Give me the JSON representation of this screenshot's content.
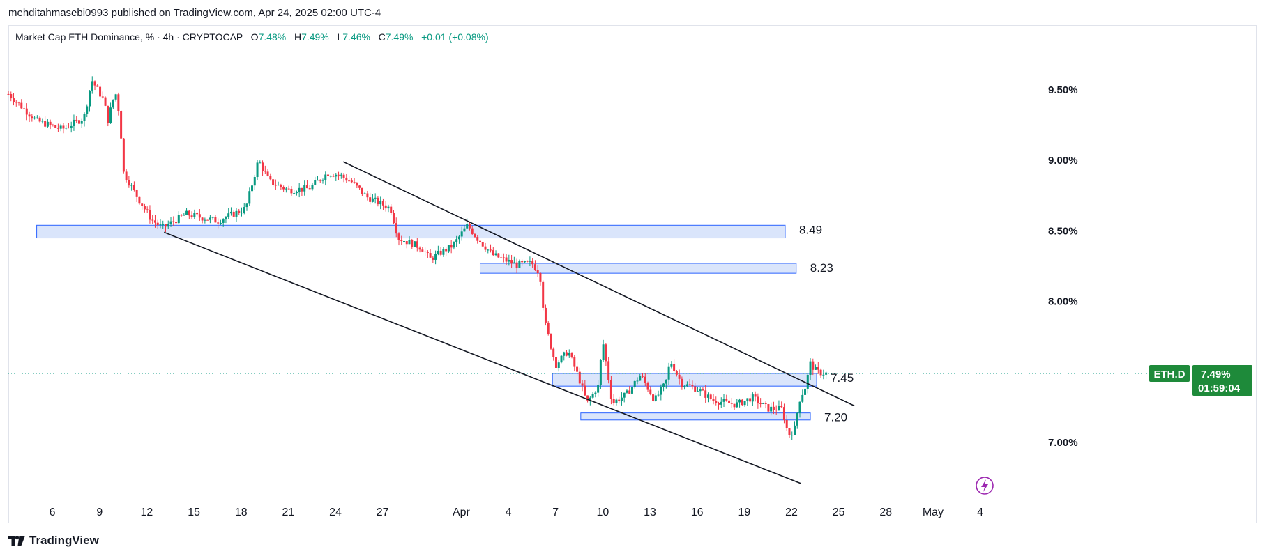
{
  "header": {
    "published": "mehditahmasebi0993 published on TradingView.com, Apr 24, 2025 02:00 UTC-4"
  },
  "legend": {
    "symbol": "Market Cap ETH Dominance, % · 4h · CRYPTOCAP",
    "o_label": "O",
    "o_value": "7.48%",
    "h_label": "H",
    "h_value": "7.49%",
    "l_label": "L",
    "l_value": "7.46%",
    "c_label": "C",
    "c_value": "7.49%",
    "change": "+0.01 (+0.08%)"
  },
  "price_tag": {
    "ticker": "ETH.D",
    "price": "7.49%",
    "countdown": "01:59:04"
  },
  "footer": {
    "brand": "TradingView"
  },
  "colors": {
    "up": "#089981",
    "down": "#f23645",
    "zone_fill": "#d6e2fb",
    "zone_stroke": "#2962ff",
    "line": "#131722"
  },
  "chart_data": {
    "type": "candlestick",
    "timeframe": "4h",
    "ylim": [
      6.68,
      9.84
    ],
    "y_ticks": [
      {
        "value": 9.5,
        "label": "9.50%"
      },
      {
        "value": 9.0,
        "label": "9.00%"
      },
      {
        "value": 8.5,
        "label": "8.50%"
      },
      {
        "value": 8.0,
        "label": "8.00%"
      },
      {
        "value": 7.0,
        "label": "7.00%"
      }
    ],
    "x_ticks": [
      {
        "day": 6,
        "label": "6"
      },
      {
        "day": 9,
        "label": "9"
      },
      {
        "day": 12,
        "label": "12"
      },
      {
        "day": 15,
        "label": "15"
      },
      {
        "day": 18,
        "label": "18"
      },
      {
        "day": 21,
        "label": "21"
      },
      {
        "day": 24,
        "label": "24"
      },
      {
        "day": 27,
        "label": "27"
      },
      {
        "day": 32,
        "label": "Apr"
      },
      {
        "day": 35,
        "label": "4"
      },
      {
        "day": 38,
        "label": "7"
      },
      {
        "day": 41,
        "label": "10"
      },
      {
        "day": 44,
        "label": "13"
      },
      {
        "day": 47,
        "label": "16"
      },
      {
        "day": 50,
        "label": "19"
      },
      {
        "day": 53,
        "label": "22"
      },
      {
        "day": 56,
        "label": "25"
      },
      {
        "day": 59,
        "label": "28"
      },
      {
        "day": 62,
        "label": "May"
      },
      {
        "day": 65,
        "label": "4"
      }
    ],
    "x_range_days": [
      3.2,
      68.3
    ],
    "key_prices": [
      {
        "day": 3.2,
        "value": 9.47
      },
      {
        "day": 5.0,
        "value": 9.28
      },
      {
        "day": 6.6,
        "value": 9.22
      },
      {
        "day": 8.0,
        "value": 9.3
      },
      {
        "day": 8.5,
        "value": 9.57
      },
      {
        "day": 9.3,
        "value": 9.42
      },
      {
        "day": 9.5,
        "value": 9.27
      },
      {
        "day": 10.0,
        "value": 9.49
      },
      {
        "day": 10.3,
        "value": 9.3
      },
      {
        "day": 10.5,
        "value": 8.92
      },
      {
        "day": 11.5,
        "value": 8.72
      },
      {
        "day": 12.3,
        "value": 8.58
      },
      {
        "day": 13.0,
        "value": 8.52
      },
      {
        "day": 14.5,
        "value": 8.62
      },
      {
        "day": 16.5,
        "value": 8.57
      },
      {
        "day": 18.3,
        "value": 8.66
      },
      {
        "day": 19.1,
        "value": 9.0
      },
      {
        "day": 19.8,
        "value": 8.85
      },
      {
        "day": 21.0,
        "value": 8.79
      },
      {
        "day": 22.3,
        "value": 8.8
      },
      {
        "day": 23.5,
        "value": 8.91
      },
      {
        "day": 24.2,
        "value": 8.9
      },
      {
        "day": 25.0,
        "value": 8.85
      },
      {
        "day": 26.0,
        "value": 8.74
      },
      {
        "day": 27.5,
        "value": 8.66
      },
      {
        "day": 28.0,
        "value": 8.45
      },
      {
        "day": 29.5,
        "value": 8.38
      },
      {
        "day": 30.0,
        "value": 8.3
      },
      {
        "day": 31.5,
        "value": 8.4
      },
      {
        "day": 32.4,
        "value": 8.54
      },
      {
        "day": 33.0,
        "value": 8.45
      },
      {
        "day": 34.0,
        "value": 8.33
      },
      {
        "day": 35.5,
        "value": 8.26
      },
      {
        "day": 36.5,
        "value": 8.27
      },
      {
        "day": 37.0,
        "value": 8.2
      },
      {
        "day": 37.3,
        "value": 7.86
      },
      {
        "day": 38.0,
        "value": 7.55
      },
      {
        "day": 38.8,
        "value": 7.65
      },
      {
        "day": 39.5,
        "value": 7.45
      },
      {
        "day": 40.0,
        "value": 7.28
      },
      {
        "day": 40.7,
        "value": 7.4
      },
      {
        "day": 41.0,
        "value": 7.72
      },
      {
        "day": 41.6,
        "value": 7.28
      },
      {
        "day": 42.5,
        "value": 7.34
      },
      {
        "day": 43.4,
        "value": 7.48
      },
      {
        "day": 44.3,
        "value": 7.3
      },
      {
        "day": 45.0,
        "value": 7.42
      },
      {
        "day": 45.3,
        "value": 7.58
      },
      {
        "day": 46.0,
        "value": 7.42
      },
      {
        "day": 47.0,
        "value": 7.38
      },
      {
        "day": 48.0,
        "value": 7.3
      },
      {
        "day": 49.5,
        "value": 7.27
      },
      {
        "day": 50.5,
        "value": 7.32
      },
      {
        "day": 51.5,
        "value": 7.24
      },
      {
        "day": 52.4,
        "value": 7.24
      },
      {
        "day": 52.8,
        "value": 7.05
      },
      {
        "day": 53.2,
        "value": 7.1
      },
      {
        "day": 53.5,
        "value": 7.3
      },
      {
        "day": 53.9,
        "value": 7.4
      },
      {
        "day": 54.2,
        "value": 7.56
      },
      {
        "day": 54.6,
        "value": 7.5
      },
      {
        "day": 55.2,
        "value": 7.49
      }
    ],
    "zones": [
      {
        "label": "8.49",
        "day_start": 5.0,
        "day_end": 52.6,
        "low": 8.45,
        "high": 8.54
      },
      {
        "label": "8.23",
        "day_start": 33.2,
        "day_end": 53.3,
        "low": 8.2,
        "high": 8.27
      },
      {
        "label": "7.45",
        "day_start": 37.8,
        "day_end": 54.6,
        "low": 7.4,
        "high": 7.49
      },
      {
        "label": "7.20",
        "day_start": 39.6,
        "day_end": 54.2,
        "low": 7.16,
        "high": 7.21
      }
    ],
    "trendlines": [
      {
        "name": "channel-upper",
        "from": {
          "day": 24.5,
          "value": 8.99
        },
        "to": {
          "day": 57.0,
          "value": 7.26
        }
      },
      {
        "name": "channel-lower",
        "from": {
          "day": 13.1,
          "value": 8.49
        },
        "to": {
          "day": 53.6,
          "value": 6.71
        }
      }
    ],
    "current_price": 7.49
  }
}
